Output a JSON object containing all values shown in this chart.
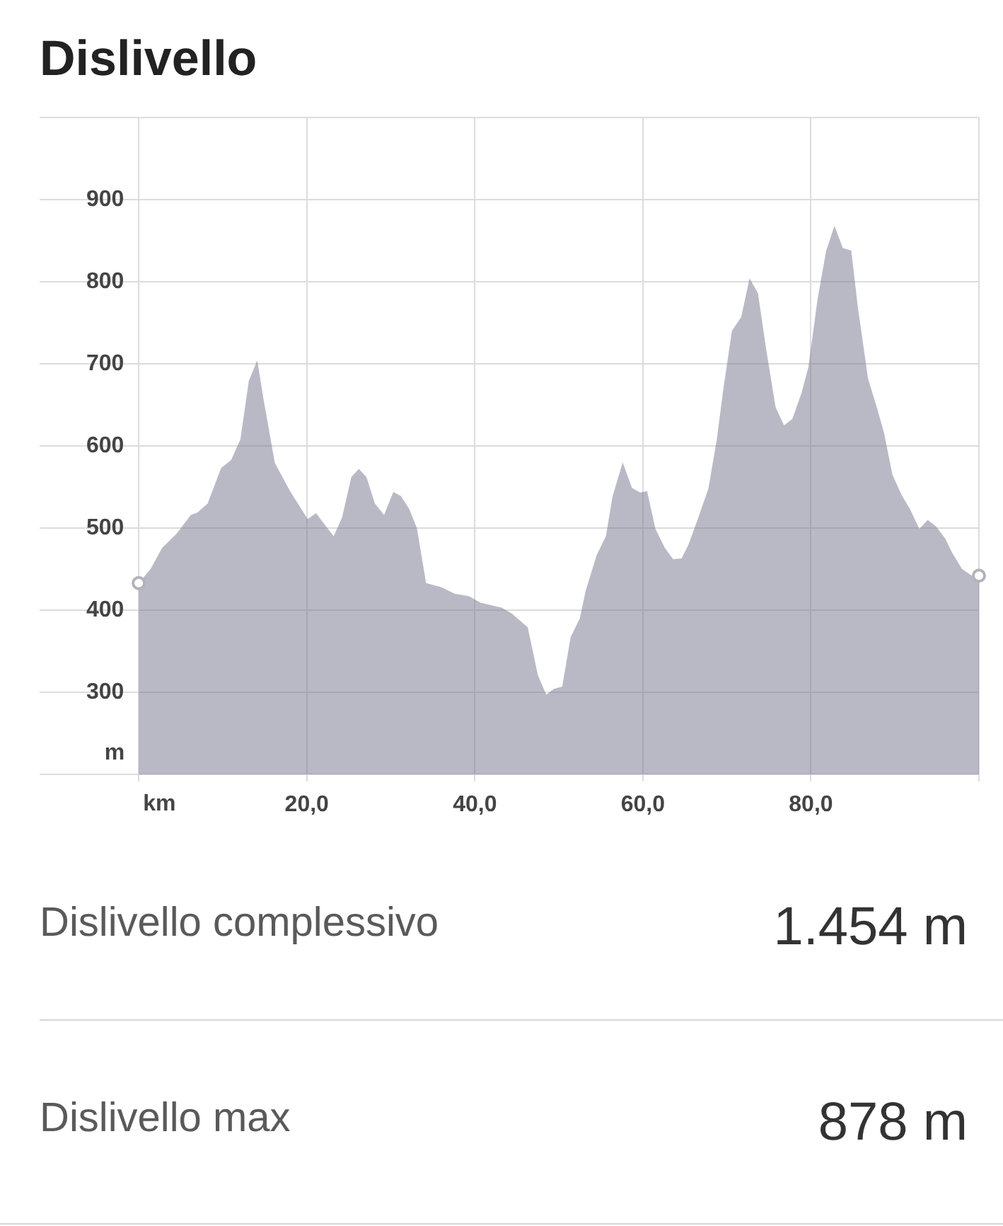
{
  "chart_data": {
    "type": "area",
    "title": "Dislivello",
    "xlabel": "km",
    "ylabel": "m",
    "x": [
      0,
      1.4,
      2.8,
      4.5,
      6.2,
      7,
      8.2,
      9.8,
      11,
      12.1,
      13.1,
      14.1,
      14.9,
      16.2,
      18,
      20.1,
      21.1,
      22.3,
      23.2,
      24.2,
      25.3,
      26.2,
      27.1,
      28.1,
      29.2,
      30.3,
      31.2,
      32.2,
      33.1,
      34.2,
      36,
      37.6,
      39.3,
      40.7,
      43.2,
      44.4,
      46.3,
      47.5,
      48.5,
      49.4,
      50.4,
      51.4,
      52.5,
      53.2,
      54.5,
      55.6,
      56.4,
      57.6,
      58.7,
      59.7,
      60.5,
      61.5,
      62.6,
      63.6,
      64.6,
      65.4,
      66.5,
      67.8,
      68.8,
      69.6,
      70.6,
      71.7,
      72.7,
      73.7,
      74.7,
      75.8,
      76.8,
      77.8,
      78.9,
      79.7,
      80.8,
      81.8,
      82.8,
      83.8,
      84.8,
      85.6,
      86.8,
      87.9,
      88.7,
      89.7,
      90.8,
      91.8,
      92.9,
      93.9,
      94.9,
      96,
      96.8,
      98,
      99.6,
      100
    ],
    "series": [
      {
        "color": "#b9b9c6",
        "values": [
          433,
          450,
          476,
          493,
          516,
          519,
          530,
          573,
          583,
          608,
          679,
          704,
          654,
          579,
          545,
          511,
          518,
          502,
          490,
          513,
          562,
          572,
          562,
          530,
          516,
          544,
          539,
          523,
          500,
          433,
          428,
          420,
          417,
          409,
          403,
          396,
          379,
          321,
          297,
          304,
          307,
          367,
          390,
          424,
          467,
          490,
          539,
          580,
          549,
          543,
          545,
          499,
          476,
          462,
          463,
          479,
          510,
          548,
          608,
          671,
          740,
          757,
          804,
          786,
          716,
          647,
          625,
          633,
          665,
          696,
          779,
          837,
          868,
          841,
          838,
          768,
          682,
          645,
          616,
          565,
          540,
          523,
          499,
          510,
          502,
          487,
          470,
          450,
          439,
          442
        ]
      },
      {
        "type": "scatter",
        "color": "#b3b3bb",
        "marker": "circle",
        "x": [
          0,
          100
        ],
        "values": [
          433,
          442
        ]
      }
    ],
    "xlim": [
      -11.8,
      100
    ],
    "xticks": [
      {
        "value": 0,
        "label": null
      },
      {
        "value": 20,
        "label": "20,0"
      },
      {
        "value": 40,
        "label": "40,0"
      },
      {
        "value": 60,
        "label": "60,0"
      },
      {
        "value": 80,
        "label": "80,0"
      },
      {
        "value": 100,
        "label": null
      }
    ],
    "ylim": [
      200,
      1000
    ],
    "yticks": [
      {
        "value": 200,
        "label": null
      },
      300,
      400,
      500,
      600,
      700,
      800,
      900,
      {
        "value": 1000,
        "label": null
      }
    ],
    "grid": true,
    "annotations": [
      "Dislivello complessivo",
      "1.454 m",
      "Dislivello max",
      "878 m"
    ]
  }
}
